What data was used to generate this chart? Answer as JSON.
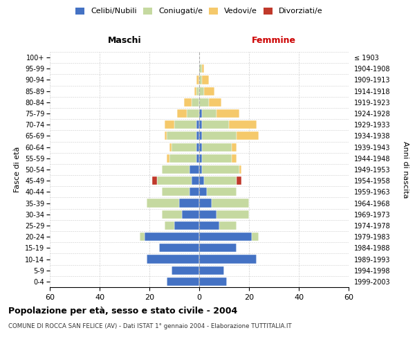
{
  "age_groups": [
    "0-4",
    "5-9",
    "10-14",
    "15-19",
    "20-24",
    "25-29",
    "30-34",
    "35-39",
    "40-44",
    "45-49",
    "50-54",
    "55-59",
    "60-64",
    "65-69",
    "70-74",
    "75-79",
    "80-84",
    "85-89",
    "90-94",
    "95-99",
    "100+"
  ],
  "birth_years": [
    "1999-2003",
    "1994-1998",
    "1989-1993",
    "1984-1988",
    "1979-1983",
    "1974-1978",
    "1969-1973",
    "1964-1968",
    "1959-1963",
    "1954-1958",
    "1949-1953",
    "1944-1948",
    "1939-1943",
    "1934-1938",
    "1929-1933",
    "1924-1928",
    "1919-1923",
    "1914-1918",
    "1909-1913",
    "1904-1908",
    "≤ 1903"
  ],
  "colors": {
    "celibi": "#4472C4",
    "coniugati": "#c5d9a0",
    "vedovi": "#f5c96b",
    "divorziati": "#c0392b"
  },
  "male": {
    "celibi": [
      13,
      11,
      21,
      16,
      22,
      10,
      7,
      8,
      4,
      3,
      4,
      1,
      1,
      1,
      1,
      0,
      0,
      0,
      0,
      0,
      0
    ],
    "coniugati": [
      0,
      0,
      0,
      0,
      2,
      4,
      8,
      13,
      11,
      14,
      11,
      11,
      10,
      12,
      9,
      5,
      3,
      1,
      0,
      0,
      0
    ],
    "vedovi": [
      0,
      0,
      0,
      0,
      0,
      0,
      0,
      0,
      0,
      0,
      0,
      1,
      1,
      1,
      4,
      4,
      3,
      1,
      1,
      0,
      0
    ],
    "divorziati": [
      0,
      0,
      0,
      0,
      0,
      0,
      0,
      0,
      0,
      2,
      0,
      0,
      0,
      0,
      0,
      0,
      0,
      0,
      0,
      0,
      0
    ]
  },
  "female": {
    "nubili": [
      11,
      10,
      23,
      15,
      21,
      8,
      7,
      5,
      3,
      2,
      1,
      1,
      1,
      1,
      1,
      1,
      0,
      0,
      0,
      0,
      0
    ],
    "coniugate": [
      0,
      0,
      0,
      0,
      3,
      7,
      13,
      15,
      12,
      13,
      15,
      12,
      12,
      14,
      11,
      6,
      4,
      2,
      1,
      1,
      0
    ],
    "vedove": [
      0,
      0,
      0,
      0,
      0,
      0,
      0,
      0,
      0,
      0,
      1,
      2,
      2,
      9,
      11,
      9,
      5,
      4,
      3,
      1,
      0
    ],
    "divorziate": [
      0,
      0,
      0,
      0,
      0,
      0,
      0,
      0,
      0,
      2,
      0,
      0,
      0,
      0,
      0,
      0,
      0,
      0,
      0,
      0,
      0
    ]
  },
  "xlim": 60,
  "title": "Popolazione per età, sesso e stato civile - 2004",
  "subtitle": "COMUNE DI ROCCA SAN FELICE (AV) - Dati ISTAT 1° gennaio 2004 - Elaborazione TUTTITALIA.IT",
  "xlabel_left": "Maschi",
  "xlabel_right": "Femmine",
  "ylabel_left": "Fasce di età",
  "ylabel_right": "Anni di nascita",
  "xticks": [
    -60,
    -40,
    -20,
    0,
    20,
    40,
    60
  ],
  "xticklabels": [
    "60",
    "40",
    "20",
    "0",
    "20",
    "40",
    "60"
  ]
}
